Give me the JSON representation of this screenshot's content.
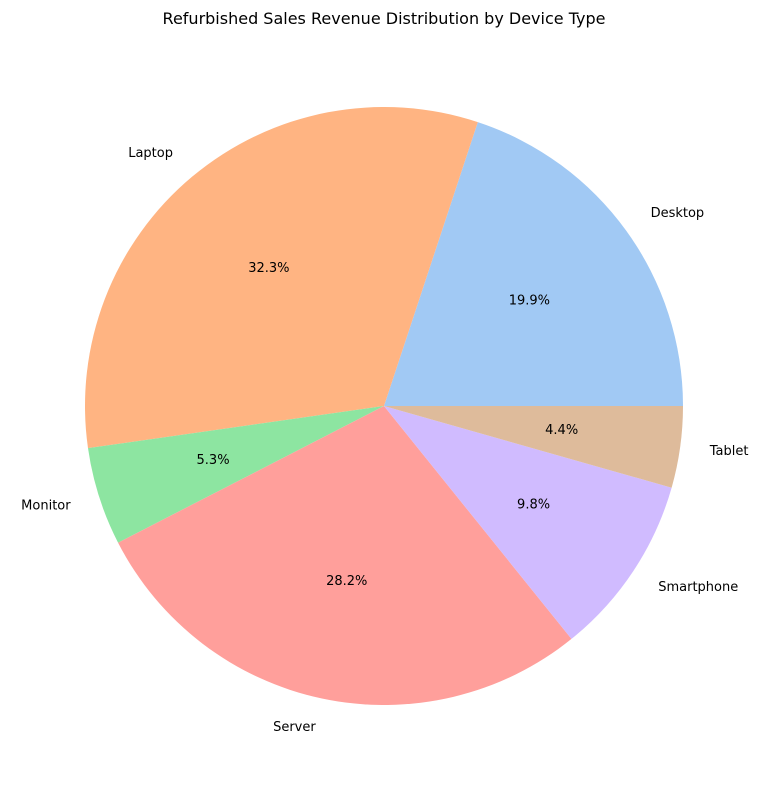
{
  "chart_data": {
    "type": "pie",
    "title": "Refurbished Sales Revenue Distribution by Device Type",
    "categories": [
      "Desktop",
      "Laptop",
      "Monitor",
      "Server",
      "Smartphone",
      "Tablet"
    ],
    "values": [
      19.9,
      32.3,
      5.3,
      28.2,
      9.8,
      4.4
    ],
    "value_labels": [
      "19.9%",
      "32.3%",
      "5.3%",
      "28.2%",
      "9.8%",
      "4.4%"
    ],
    "colors": [
      "#a1c9f4",
      "#ffb482",
      "#8de5a1",
      "#ff9f9b",
      "#d0bbff",
      "#debb9b"
    ],
    "start_angle_deg": 0,
    "direction": "counterclockwise",
    "legend": "none"
  }
}
